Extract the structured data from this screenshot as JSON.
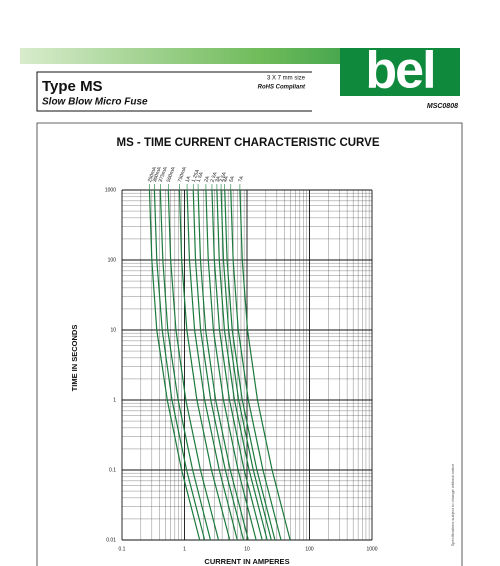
{
  "header": {
    "title": "Type MS",
    "subtitle": "Slow Blow Micro Fuse",
    "size": "3 X 7 mm size",
    "rohs": "RoHS Compliant",
    "logo": "bel",
    "code": "MSC0808"
  },
  "side_note": "Specifications subject to change without notice",
  "chart_data": {
    "type": "line",
    "title": "MS - TIME CURRENT CHARACTERISTIC CURVE",
    "x_label": "CURRENT IN AMPERES",
    "y_label": "TIME IN SECONDS",
    "log_x": true,
    "log_y": true,
    "grid": true,
    "color": "#1b7a3c",
    "xlim": [
      0.1,
      1000
    ],
    "xticks": [
      0.1,
      1,
      10,
      100,
      1000
    ],
    "ylim": [
      0.01,
      1000
    ],
    "yticks": [
      0.01,
      0.1,
      1,
      10,
      100,
      1000
    ],
    "series": [
      {
        "name": "250mA",
        "x": [
          0.275,
          0.3,
          0.36,
          0.53,
          0.9,
          1.75
        ],
        "values": [
          1000,
          100,
          10,
          1,
          0.1,
          0.01
        ]
      },
      {
        "name": "300mA",
        "x": [
          0.33,
          0.36,
          0.44,
          0.63,
          1.08,
          2.1
        ],
        "values": [
          1000,
          100,
          10,
          1,
          0.1,
          0.01
        ]
      },
      {
        "name": "375mA",
        "x": [
          0.41,
          0.45,
          0.54,
          0.79,
          1.35,
          2.6
        ],
        "values": [
          1000,
          100,
          10,
          1,
          0.1,
          0.01
        ]
      },
      {
        "name": "500mA",
        "x": [
          0.55,
          0.6,
          0.73,
          1.05,
          1.8,
          3.5
        ],
        "values": [
          1000,
          100,
          10,
          1,
          0.1,
          0.01
        ]
      },
      {
        "name": "750mA",
        "x": [
          0.83,
          0.9,
          1.09,
          1.58,
          2.7,
          5.3
        ],
        "values": [
          1000,
          100,
          10,
          1,
          0.1,
          0.01
        ]
      },
      {
        "name": "1A",
        "x": [
          1.1,
          1.2,
          1.45,
          2.1,
          3.6,
          7
        ],
        "values": [
          1000,
          100,
          10,
          1,
          0.1,
          0.01
        ]
      },
      {
        "name": "1.25A",
        "x": [
          1.38,
          1.5,
          1.81,
          2.63,
          4.5,
          8.8
        ],
        "values": [
          1000,
          100,
          10,
          1,
          0.1,
          0.01
        ]
      },
      {
        "name": "1.5A",
        "x": [
          1.65,
          1.8,
          2.18,
          3.15,
          5.4,
          10.5
        ],
        "values": [
          1000,
          100,
          10,
          1,
          0.1,
          0.01
        ]
      },
      {
        "name": "2A",
        "x": [
          2.2,
          2.4,
          2.9,
          4.2,
          7.2,
          14
        ],
        "values": [
          1000,
          100,
          10,
          1,
          0.1,
          0.01
        ]
      },
      {
        "name": "2.5A",
        "x": [
          2.75,
          3,
          3.63,
          5.25,
          9,
          17.5
        ],
        "values": [
          1000,
          100,
          10,
          1,
          0.1,
          0.01
        ]
      },
      {
        "name": "3A",
        "x": [
          3.3,
          3.6,
          4.35,
          6.3,
          10.8,
          21
        ],
        "values": [
          1000,
          100,
          10,
          1,
          0.1,
          0.01
        ]
      },
      {
        "name": "3.5A",
        "x": [
          3.85,
          4.2,
          5.08,
          7.35,
          12.6,
          24.5
        ],
        "values": [
          1000,
          100,
          10,
          1,
          0.1,
          0.01
        ]
      },
      {
        "name": "4A",
        "x": [
          4.4,
          4.8,
          5.8,
          8.4,
          14.4,
          28
        ],
        "values": [
          1000,
          100,
          10,
          1,
          0.1,
          0.01
        ]
      },
      {
        "name": "5A",
        "x": [
          5.5,
          6,
          7.25,
          10.5,
          18,
          35
        ],
        "values": [
          1000,
          100,
          10,
          1,
          0.1,
          0.01
        ]
      },
      {
        "name": "7A",
        "x": [
          7.7,
          8.4,
          10.2,
          14.7,
          25.2,
          49
        ],
        "values": [
          1000,
          100,
          10,
          1,
          0.1,
          0.01
        ]
      }
    ]
  }
}
